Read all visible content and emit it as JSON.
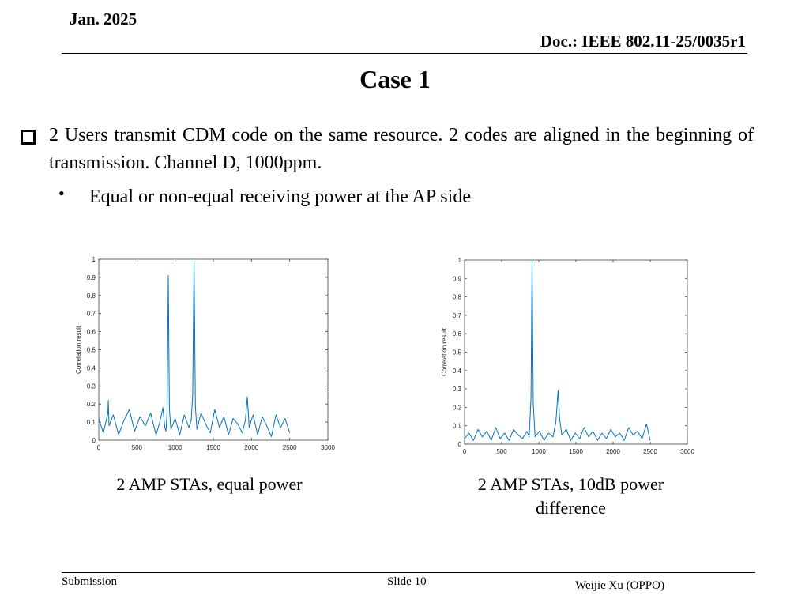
{
  "header": {
    "date": "Jan. 2025",
    "doc": "Doc.: IEEE 802.11-25/0035r1"
  },
  "title": "Case 1",
  "body": {
    "bullet": "2 Users transmit CDM code on the same resource. 2 codes are aligned in the beginning of transmission.  Channel D, 1000ppm.",
    "sub_bullet_marker": "•",
    "sub_bullet": "Equal or non-equal receiving power at the AP side"
  },
  "captions": {
    "left": "2 AMP STAs,  equal power",
    "right": "2 AMP STAs, 10dB power difference"
  },
  "footer": {
    "left": "Submission",
    "center": "Slide 10",
    "right": "Weijie Xu (OPPO)"
  },
  "colors": {
    "line": "#0072bd"
  },
  "chart_data": [
    {
      "type": "line",
      "title": "",
      "xlabel": "",
      "ylabel": "Correlation result",
      "xlim": [
        0,
        3000
      ],
      "ylim": [
        0,
        1
      ],
      "xticks": [
        "0",
        "500",
        "1000",
        "1500",
        "2000",
        "2500",
        "3000"
      ],
      "yticks": [
        "0",
        "0.1",
        "0.2",
        "0.3",
        "0.4",
        "0.5",
        "0.6",
        "0.7",
        "0.8",
        "0.9",
        "1"
      ],
      "grid": false,
      "series": [
        {
          "x": [
            0,
            60,
            120,
            125,
            135,
            190,
            260,
            330,
            400,
            470,
            540,
            610,
            680,
            750,
            800,
            840,
            865,
            880,
            895,
            910,
            925,
            945,
            1000,
            1060,
            1120,
            1180,
            1210,
            1230,
            1248,
            1265,
            1285,
            1340,
            1400,
            1460,
            1520,
            1580,
            1640,
            1700,
            1760,
            1820,
            1880,
            1920,
            1945,
            1970,
            2020,
            2080,
            2140,
            2200,
            2260,
            2320,
            2380,
            2440,
            2500
          ],
          "y": [
            0.12,
            0.04,
            0.15,
            0.22,
            0.08,
            0.14,
            0.03,
            0.11,
            0.17,
            0.05,
            0.13,
            0.08,
            0.15,
            0.03,
            0.1,
            0.18,
            0.07,
            0.05,
            0.16,
            0.91,
            0.17,
            0.06,
            0.12,
            0.03,
            0.14,
            0.07,
            0.11,
            0.25,
            1.0,
            0.19,
            0.06,
            0.15,
            0.09,
            0.04,
            0.17,
            0.07,
            0.13,
            0.03,
            0.12,
            0.09,
            0.04,
            0.11,
            0.24,
            0.07,
            0.14,
            0.03,
            0.13,
            0.08,
            0.02,
            0.14,
            0.07,
            0.12,
            0.04
          ]
        }
      ]
    },
    {
      "type": "line",
      "title": "",
      "xlabel": "",
      "ylabel": "Correlation result",
      "xlim": [
        0,
        3000
      ],
      "ylim": [
        0,
        1
      ],
      "xticks": [
        "0",
        "500",
        "1000",
        "1500",
        "2000",
        "2500",
        "3000"
      ],
      "yticks": [
        "0",
        "0.1",
        "0.2",
        "0.3",
        "0.4",
        "0.5",
        "0.6",
        "0.7",
        "0.8",
        "0.9",
        "1"
      ],
      "grid": false,
      "series": [
        {
          "x": [
            0,
            60,
            120,
            180,
            240,
            300,
            360,
            420,
            480,
            540,
            600,
            660,
            720,
            780,
            840,
            870,
            895,
            910,
            925,
            950,
            1010,
            1070,
            1130,
            1190,
            1230,
            1260,
            1280,
            1310,
            1370,
            1430,
            1490,
            1550,
            1610,
            1670,
            1730,
            1790,
            1850,
            1910,
            1970,
            2030,
            2090,
            2150,
            2210,
            2270,
            2330,
            2390,
            2450,
            2500
          ],
          "y": [
            0.03,
            0.06,
            0.02,
            0.08,
            0.04,
            0.07,
            0.02,
            0.09,
            0.03,
            0.06,
            0.02,
            0.08,
            0.05,
            0.03,
            0.07,
            0.04,
            0.25,
            1.0,
            0.22,
            0.04,
            0.07,
            0.02,
            0.06,
            0.04,
            0.12,
            0.29,
            0.14,
            0.05,
            0.08,
            0.02,
            0.06,
            0.03,
            0.09,
            0.04,
            0.07,
            0.02,
            0.06,
            0.03,
            0.08,
            0.04,
            0.06,
            0.02,
            0.09,
            0.05,
            0.07,
            0.03,
            0.11,
            0.02
          ]
        }
      ]
    }
  ]
}
